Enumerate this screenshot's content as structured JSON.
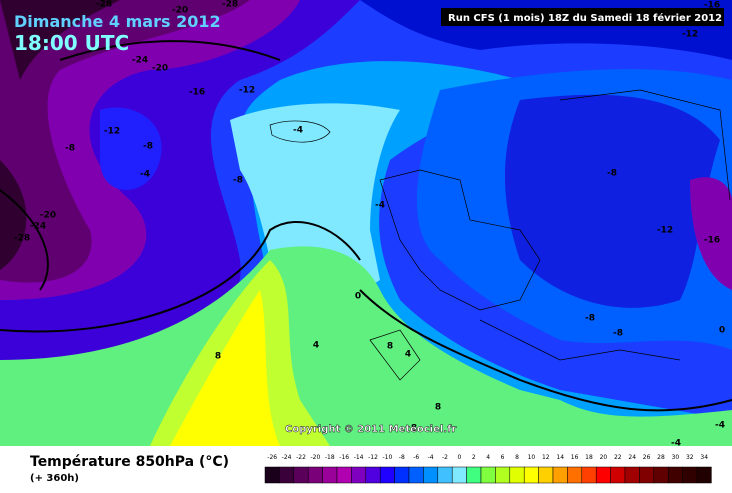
{
  "header": {
    "date": "Dimanche 4 mars 2012",
    "time": "18:00 UTC",
    "run": "Run CFS (1 mois) 18Z du Samedi 18 février 2012"
  },
  "copyright": "Copyright © 2011 Meteociel.fr",
  "footer": {
    "title": "Température 850hPa (°C)",
    "lead": "(+ 360h)"
  },
  "scale": {
    "labels": [
      -26,
      -24,
      -22,
      -20,
      -18,
      -16,
      -14,
      -12,
      -10,
      -8,
      -6,
      -4,
      -2,
      0,
      2,
      4,
      6,
      8,
      10,
      12,
      14,
      16,
      18,
      20,
      22,
      24,
      26,
      28,
      30,
      32,
      34
    ],
    "colors": [
      "#1a001a",
      "#3a003a",
      "#5a005a",
      "#7a007a",
      "#9a009a",
      "#b000b0",
      "#8000c0",
      "#5000e0",
      "#2000ff",
      "#0030ff",
      "#0060ff",
      "#0090ff",
      "#40c0ff",
      "#80e8ff",
      "#40ff80",
      "#80ff40",
      "#b0ff20",
      "#e0ff00",
      "#ffff00",
      "#ffd000",
      "#ffa000",
      "#ff7000",
      "#ff4000",
      "#ff0000",
      "#d00000",
      "#a00000",
      "#800000",
      "#600000",
      "#400000",
      "#300000",
      "#200000"
    ]
  },
  "contour_labels": [
    -28,
    -28,
    -24,
    -20,
    -20,
    -16,
    -12,
    -12,
    -8,
    -8,
    -4,
    -8,
    -4,
    -4,
    -8,
    -12,
    -16,
    -12,
    -16,
    -20,
    -24,
    -28,
    -8,
    -8,
    0,
    0,
    4,
    4,
    8,
    8,
    8,
    8,
    -4,
    -4
  ]
}
